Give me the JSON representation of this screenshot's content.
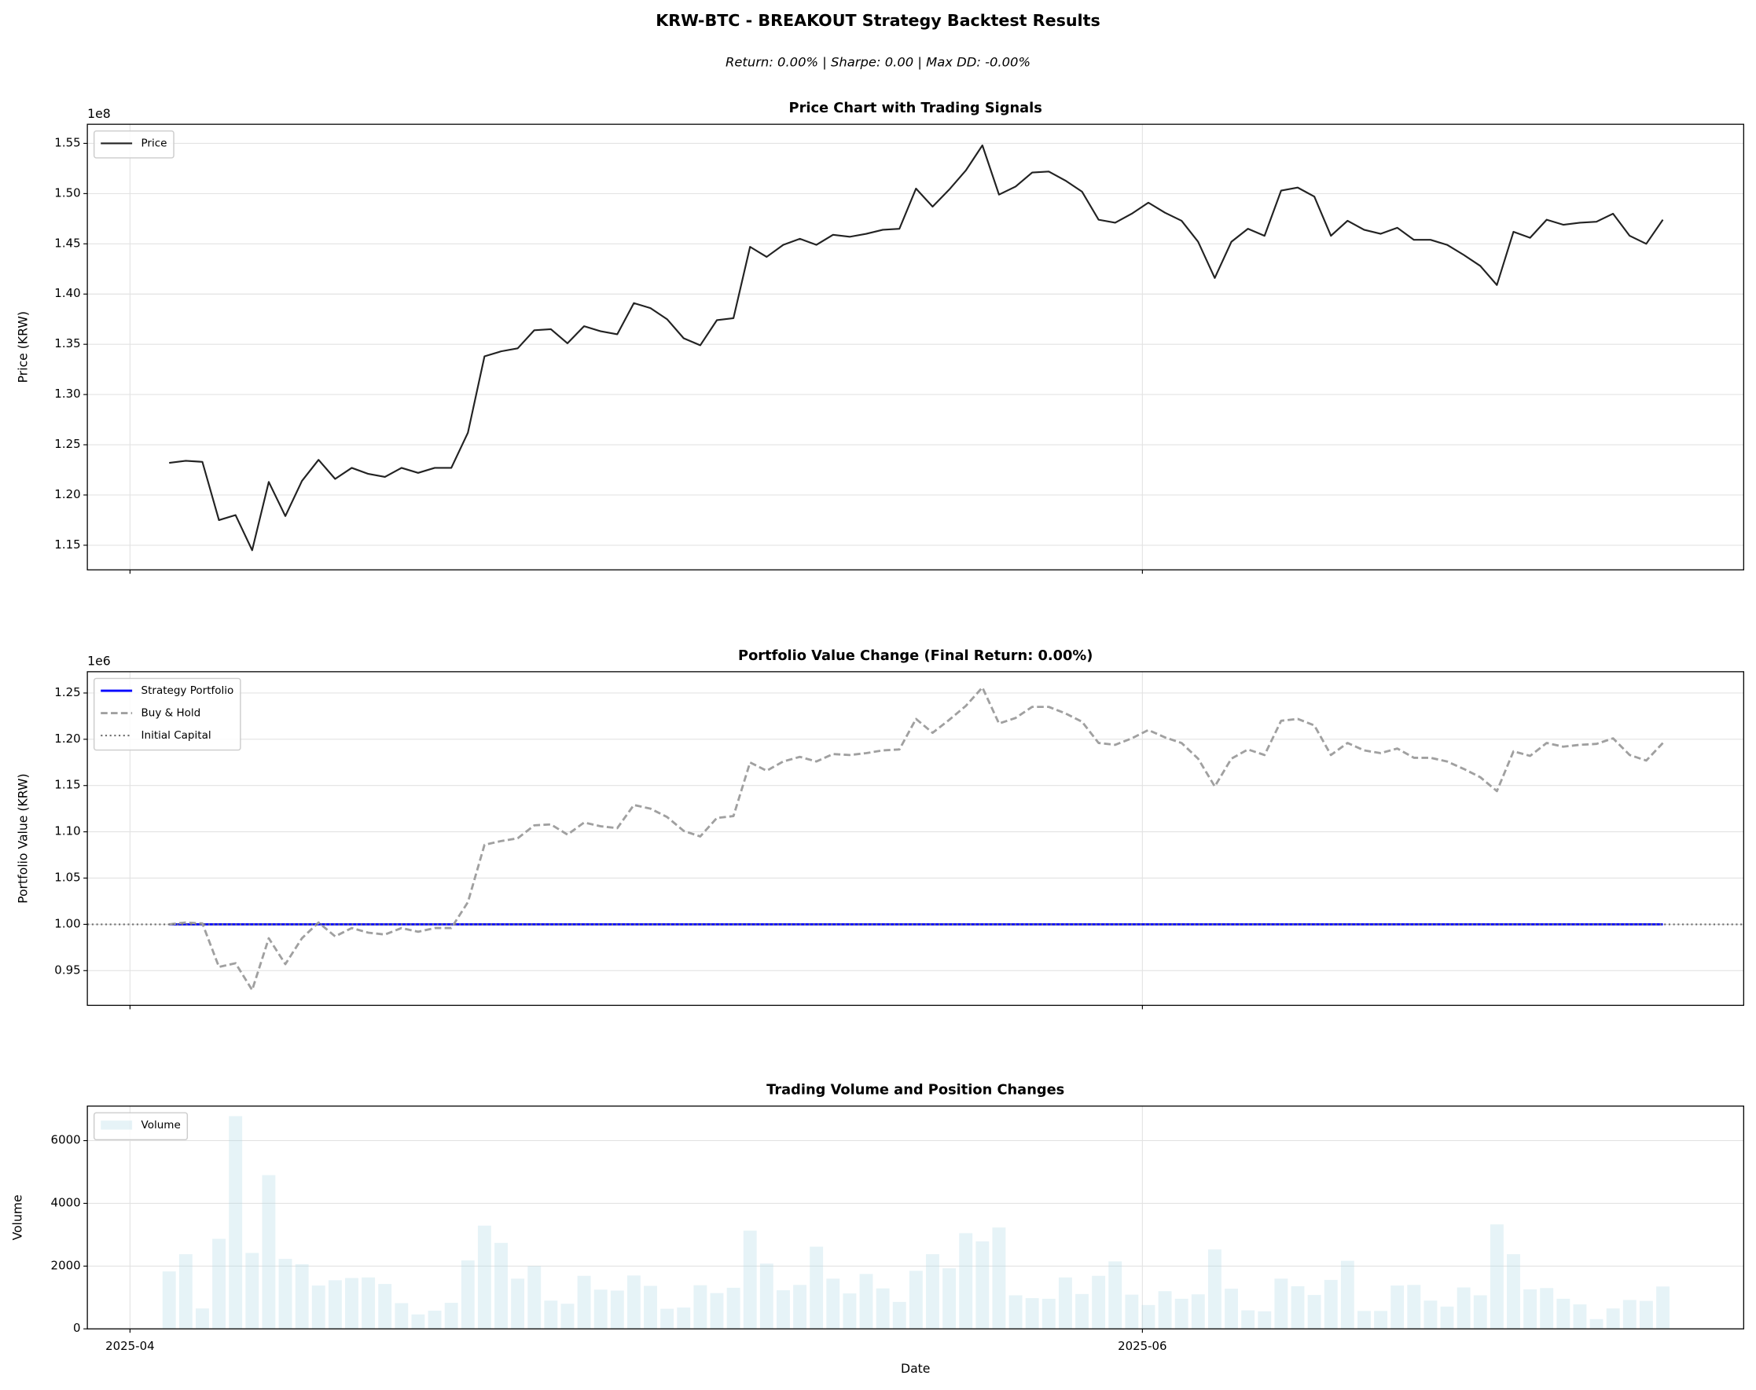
{
  "title": "KRW-BTC - BREAKOUT Strategy Backtest Results",
  "subtitle": "Return: 0.00% | Sharpe: 0.00 | Max DD: -0.00%",
  "chart_data": [
    {
      "type": "line",
      "title": "Price Chart with Trading Signals",
      "ylabel": "Price (KRW)",
      "y_offset_label": "1e8",
      "x": [
        0,
        1,
        2,
        3,
        4,
        5,
        6,
        7,
        8,
        9,
        10,
        11,
        12,
        13,
        14,
        15,
        16,
        17,
        18,
        19,
        20,
        21,
        22,
        23,
        24,
        25,
        26,
        27,
        28,
        29,
        30,
        31,
        32,
        33,
        34,
        35,
        36,
        37,
        38,
        39,
        40,
        41,
        42,
        43,
        44,
        45,
        46,
        47,
        48,
        49,
        50,
        51,
        52,
        53,
        54,
        55,
        56,
        57,
        58,
        59,
        60,
        61,
        62,
        63,
        64,
        65,
        66,
        67,
        68,
        69,
        70,
        71,
        72,
        73,
        74,
        75,
        76,
        77,
        78,
        79,
        80,
        81,
        82,
        83,
        84,
        85,
        86,
        87,
        88,
        89,
        90
      ],
      "series": [
        {
          "name": "Price",
          "color": "#222222",
          "style": "solid",
          "width": 1.5,
          "values": [
            1.232,
            1.234,
            1.233,
            1.175,
            1.18,
            1.145,
            1.213,
            1.179,
            1.214,
            1.235,
            1.216,
            1.227,
            1.221,
            1.218,
            1.227,
            1.222,
            1.227,
            1.227,
            1.262,
            1.338,
            1.343,
            1.346,
            1.364,
            1.365,
            1.351,
            1.368,
            1.363,
            1.36,
            1.391,
            1.386,
            1.375,
            1.356,
            1.349,
            1.374,
            1.376,
            1.447,
            1.437,
            1.449,
            1.455,
            1.449,
            1.459,
            1.457,
            1.46,
            1.464,
            1.465,
            1.505,
            1.487,
            1.504,
            1.523,
            1.548,
            1.499,
            1.507,
            1.521,
            1.522,
            1.513,
            1.502,
            1.474,
            1.471,
            1.48,
            1.491,
            1.481,
            1.473,
            1.452,
            1.416,
            1.452,
            1.465,
            1.458,
            1.503,
            1.506,
            1.497,
            1.458,
            1.473,
            1.464,
            1.46,
            1.466,
            1.454,
            1.454,
            1.449,
            1.439,
            1.428,
            1.409,
            1.462,
            1.456,
            1.474,
            1.469,
            1.471,
            1.472,
            1.48,
            1.458,
            1.45,
            1.474
          ]
        }
      ],
      "xlim": [
        -4.93,
        94.87
      ],
      "xticks": [
        -2.36,
        58.64
      ],
      "ylim": [
        1.1255,
        1.569
      ],
      "yticks": [
        1.15,
        {
          "value": 1.2,
          "label": "1.20"
        },
        1.25,
        {
          "value": 1.3,
          "label": "1.30"
        },
        1.35,
        {
          "value": 1.4,
          "label": "1.40"
        },
        1.45,
        {
          "value": 1.5,
          "label": "1.50"
        },
        1.55
      ],
      "grid": true,
      "legend": "upper left"
    },
    {
      "type": "line",
      "title": "Portfolio Value Change (Final Return: 0.00%)",
      "ylabel": "Portfolio Value (KRW)",
      "y_offset_label": "1e6",
      "x": [
        0,
        1,
        2,
        3,
        4,
        5,
        6,
        7,
        8,
        9,
        10,
        11,
        12,
        13,
        14,
        15,
        16,
        17,
        18,
        19,
        20,
        21,
        22,
        23,
        24,
        25,
        26,
        27,
        28,
        29,
        30,
        31,
        32,
        33,
        34,
        35,
        36,
        37,
        38,
        39,
        40,
        41,
        42,
        43,
        44,
        45,
        46,
        47,
        48,
        49,
        50,
        51,
        52,
        53,
        54,
        55,
        56,
        57,
        58,
        59,
        60,
        61,
        62,
        63,
        64,
        65,
        66,
        67,
        68,
        69,
        70,
        71,
        72,
        73,
        74,
        75,
        76,
        77,
        78,
        79,
        80,
        81,
        82,
        83,
        84,
        85,
        86,
        87,
        88,
        89,
        90
      ],
      "series": [
        {
          "name": "Strategy Portfolio",
          "color": "#0000ff",
          "style": "solid",
          "width": 2,
          "values": [
            1,
            1,
            1,
            1,
            1,
            1,
            1,
            1,
            1,
            1,
            1,
            1,
            1,
            1,
            1,
            1,
            1,
            1,
            1,
            1,
            1,
            1,
            1,
            1,
            1,
            1,
            1,
            1,
            1,
            1,
            1,
            1,
            1,
            1,
            1,
            1,
            1,
            1,
            1,
            1,
            1,
            1,
            1,
            1,
            1,
            1,
            1,
            1,
            1,
            1,
            1,
            1,
            1,
            1,
            1,
            1,
            1,
            1,
            1,
            1,
            1,
            1,
            1,
            1,
            1,
            1,
            1,
            1,
            1,
            1,
            1,
            1,
            1,
            1,
            1,
            1,
            1,
            1,
            1,
            1,
            1,
            1,
            1,
            1,
            1,
            1,
            1,
            1,
            1,
            1,
            1
          ]
        },
        {
          "name": "Buy & Hold",
          "color": "#a0a0a0",
          "style": "dashed",
          "width": 2,
          "values": [
            1.0,
            1.002,
            1.001,
            0.954,
            0.958,
            0.929,
            0.985,
            0.957,
            0.985,
            1.002,
            0.987,
            0.996,
            0.991,
            0.989,
            0.996,
            0.992,
            0.996,
            0.996,
            1.024,
            1.086,
            1.09,
            1.093,
            1.107,
            1.108,
            1.097,
            1.11,
            1.106,
            1.104,
            1.129,
            1.125,
            1.116,
            1.101,
            1.095,
            1.115,
            1.117,
            1.175,
            1.166,
            1.176,
            1.181,
            1.176,
            1.184,
            1.183,
            1.185,
            1.188,
            1.189,
            1.222,
            1.207,
            1.221,
            1.236,
            1.256,
            1.217,
            1.223,
            1.235,
            1.235,
            1.228,
            1.219,
            1.196,
            1.194,
            1.201,
            1.21,
            1.202,
            1.196,
            1.179,
            1.149,
            1.179,
            1.189,
            1.183,
            1.22,
            1.222,
            1.215,
            1.183,
            1.196,
            1.188,
            1.185,
            1.19,
            1.18,
            1.18,
            1.176,
            1.168,
            1.159,
            1.144,
            1.187,
            1.182,
            1.196,
            1.192,
            1.194,
            1.195,
            1.201,
            1.183,
            1.177,
            1.196
          ]
        },
        {
          "name": "Initial Capital",
          "color": "#707070",
          "style": "dotted",
          "width": 1.5,
          "hline": 1
        }
      ],
      "xlim": [
        -4.93,
        94.87
      ],
      "xticks": [
        -2.36,
        58.64
      ],
      "ylim": [
        0.9125,
        1.273
      ],
      "yticks": [
        0.95,
        {
          "value": 1.0,
          "label": "1.00"
        },
        1.05,
        {
          "value": 1.1,
          "label": "1.10"
        },
        1.15,
        {
          "value": 1.2,
          "label": "1.20"
        },
        1.25
      ],
      "grid": true,
      "legend": "upper left"
    },
    {
      "type": "bar",
      "title": "Trading Volume and Position Changes",
      "ylabel": "Volume",
      "xlabel": "Date",
      "x": [
        0,
        1,
        2,
        3,
        4,
        5,
        6,
        7,
        8,
        9,
        10,
        11,
        12,
        13,
        14,
        15,
        16,
        17,
        18,
        19,
        20,
        21,
        22,
        23,
        24,
        25,
        26,
        27,
        28,
        29,
        30,
        31,
        32,
        33,
        34,
        35,
        36,
        37,
        38,
        39,
        40,
        41,
        42,
        43,
        44,
        45,
        46,
        47,
        48,
        49,
        50,
        51,
        52,
        53,
        54,
        55,
        56,
        57,
        58,
        59,
        60,
        61,
        62,
        63,
        64,
        65,
        66,
        67,
        68,
        69,
        70,
        71,
        72,
        73,
        74,
        75,
        76,
        77,
        78,
        79,
        80,
        81,
        82,
        83,
        84,
        85,
        86,
        87,
        88,
        89,
        90
      ],
      "series": [
        {
          "name": "Volume",
          "color": "#add8e6",
          "opacity": 0.3,
          "values": [
            1830,
            2380,
            650,
            2870,
            6780,
            2420,
            4900,
            2230,
            2060,
            1380,
            1550,
            1620,
            1640,
            1430,
            820,
            460,
            580,
            830,
            2180,
            3290,
            2740,
            1600,
            2000,
            900,
            800,
            1690,
            1250,
            1220,
            1700,
            1370,
            640,
            680,
            1390,
            1140,
            1310,
            3130,
            2080,
            1230,
            1400,
            2620,
            1600,
            1130,
            1750,
            1290,
            860,
            1850,
            2380,
            1930,
            3050,
            2790,
            3230,
            1070,
            980,
            960,
            1640,
            1110,
            1690,
            2150,
            1090,
            760,
            1200,
            960,
            1100,
            2530,
            1280,
            590,
            560,
            1600,
            1360,
            1080,
            1560,
            2170,
            570,
            570,
            1380,
            1400,
            900,
            710,
            1320,
            1070,
            3330,
            2380,
            1260,
            1300,
            960,
            780,
            310,
            650,
            920,
            890,
            1350
          ]
        }
      ],
      "xlim": [
        -4.93,
        94.87
      ],
      "xticks": [
        {
          "value": -2.36,
          "label": "2025-04"
        },
        {
          "value": 58.64,
          "label": "2025-06"
        }
      ],
      "ylim": [
        0,
        7100
      ],
      "yticks": [
        0,
        2000,
        4000,
        6000
      ],
      "grid": true,
      "legend": "upper left"
    }
  ]
}
